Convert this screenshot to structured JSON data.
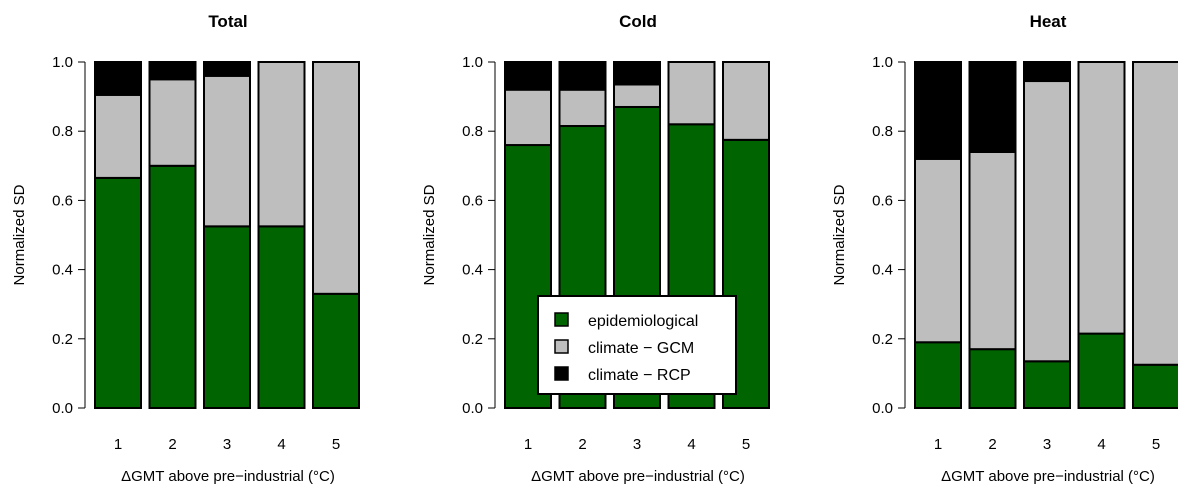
{
  "chart_data": [
    {
      "type": "bar",
      "stacked": true,
      "title": "Total",
      "xlabel": "ΔGMT above pre−industrial (°C)",
      "ylabel": "Normalized SD",
      "ylim": [
        0,
        1
      ],
      "yticks": [
        "0.0",
        "0.2",
        "0.4",
        "0.6",
        "0.8",
        "1.0"
      ],
      "categories": [
        "1",
        "2",
        "3",
        "4",
        "5"
      ],
      "series": [
        {
          "name": "epidemiological",
          "color": "#006400",
          "values": [
            0.665,
            0.7,
            0.525,
            0.525,
            0.33
          ]
        },
        {
          "name": "climate − GCM",
          "color": "#bebebe",
          "values": [
            0.24,
            0.25,
            0.435,
            0.475,
            0.67
          ]
        },
        {
          "name": "climate − RCP",
          "color": "#000000",
          "values": [
            0.095,
            0.05,
            0.04,
            0.0,
            0.0
          ]
        }
      ]
    },
    {
      "type": "bar",
      "stacked": true,
      "title": "Cold",
      "xlabel": "ΔGMT above pre−industrial (°C)",
      "ylabel": "Normalized SD",
      "ylim": [
        0,
        1
      ],
      "yticks": [
        "0.0",
        "0.2",
        "0.4",
        "0.6",
        "0.8",
        "1.0"
      ],
      "categories": [
        "1",
        "2",
        "3",
        "4",
        "5"
      ],
      "series": [
        {
          "name": "epidemiological",
          "color": "#006400",
          "values": [
            0.76,
            0.815,
            0.87,
            0.82,
            0.775
          ]
        },
        {
          "name": "climate − GCM",
          "color": "#bebebe",
          "values": [
            0.16,
            0.105,
            0.065,
            0.18,
            0.225
          ]
        },
        {
          "name": "climate − RCP",
          "color": "#000000",
          "values": [
            0.08,
            0.08,
            0.065,
            0.0,
            0.0
          ]
        }
      ],
      "legend": {
        "placement": "bottom-center",
        "entries": [
          "epidemiological",
          "climate − GCM",
          "climate − RCP"
        ]
      }
    },
    {
      "type": "bar",
      "stacked": true,
      "title": "Heat",
      "xlabel": "ΔGMT above pre−industrial (°C)",
      "ylabel": "Normalized SD",
      "ylim": [
        0,
        1
      ],
      "yticks": [
        "0.0",
        "0.2",
        "0.4",
        "0.6",
        "0.8",
        "1.0"
      ],
      "categories": [
        "1",
        "2",
        "3",
        "4",
        "5"
      ],
      "series": [
        {
          "name": "epidemiological",
          "color": "#006400",
          "values": [
            0.19,
            0.17,
            0.135,
            0.215,
            0.125
          ]
        },
        {
          "name": "climate − GCM",
          "color": "#bebebe",
          "values": [
            0.53,
            0.57,
            0.81,
            0.785,
            0.875
          ]
        },
        {
          "name": "climate − RCP",
          "color": "#000000",
          "values": [
            0.28,
            0.26,
            0.055,
            0.0,
            0.0
          ]
        }
      ]
    }
  ]
}
